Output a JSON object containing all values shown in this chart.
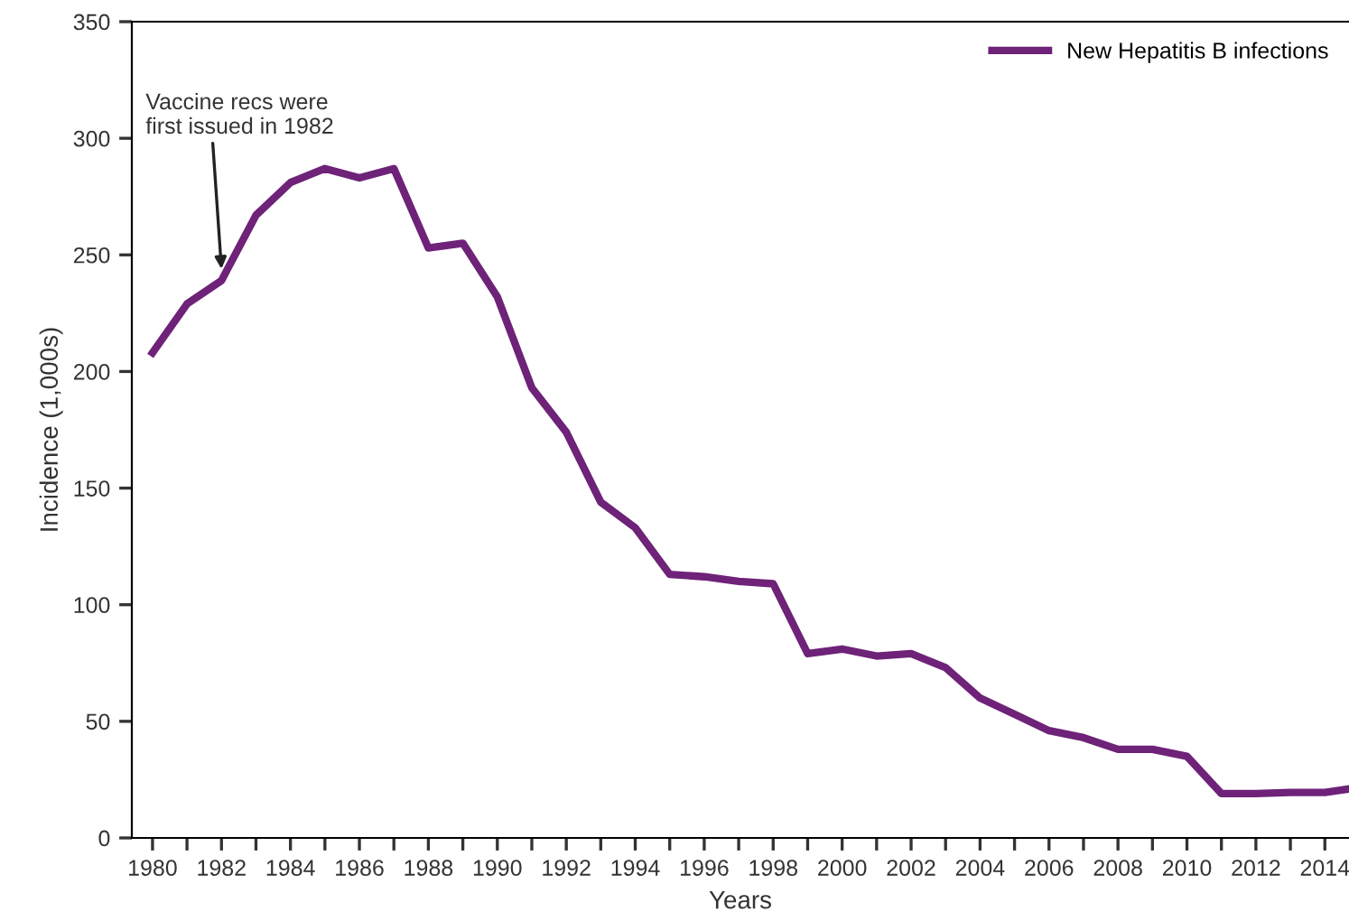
{
  "chart_data": {
    "type": "line",
    "xlabel": "Years",
    "ylabel": "Incidence (1,000s)",
    "x": [
      1980,
      1981,
      1982,
      1983,
      1984,
      1985,
      1986,
      1987,
      1988,
      1989,
      1990,
      1991,
      1992,
      1993,
      1994,
      1995,
      1996,
      1997,
      1998,
      1999,
      2000,
      2001,
      2002,
      2003,
      2004,
      2005,
      2006,
      2007,
      2008,
      2009,
      2010,
      2011,
      2012,
      2013,
      2014,
      2014.7
    ],
    "series": [
      {
        "name": "New Hepatitis B infections",
        "color": "#6e2278",
        "values": [
          208,
          229,
          239,
          267,
          281,
          287,
          283,
          287,
          253,
          255,
          232,
          193,
          174,
          144,
          133,
          113,
          112,
          110,
          109,
          79,
          81,
          78,
          79,
          73,
          60,
          53,
          46,
          43,
          38,
          38,
          35,
          19,
          19,
          19.5,
          19.5,
          21
        ]
      }
    ],
    "xlim": [
      1979.4,
      2014.7
    ],
    "ylim": [
      0,
      350
    ],
    "xticks": [
      1980,
      {
        "value": 1981,
        "label": null
      },
      1982,
      {
        "value": 1983,
        "label": null
      },
      1984,
      {
        "value": 1985,
        "label": null
      },
      1986,
      {
        "value": 1987,
        "label": null
      },
      1988,
      {
        "value": 1989,
        "label": null
      },
      1990,
      {
        "value": 1991,
        "label": null
      },
      1992,
      {
        "value": 1993,
        "label": null
      },
      1994,
      {
        "value": 1995,
        "label": null
      },
      1996,
      {
        "value": 1997,
        "label": null
      },
      1998,
      {
        "value": 1999,
        "label": null
      },
      2000,
      {
        "value": 2001,
        "label": null
      },
      2002,
      {
        "value": 2003,
        "label": null
      },
      2004,
      {
        "value": 2005,
        "label": null
      },
      2006,
      {
        "value": 2007,
        "label": null
      },
      2008,
      {
        "value": 2009,
        "label": null
      },
      2010,
      {
        "value": 2011,
        "label": null
      },
      2012,
      {
        "value": 2013,
        "label": null
      },
      2014
    ],
    "yticks": [
      0,
      50,
      100,
      150,
      200,
      250,
      300,
      350
    ],
    "annotations": [
      {
        "text": "Vaccine recs were\nfirst issued in 1982",
        "x": 1982,
        "y": 239
      }
    ],
    "grid": false,
    "legend": "top right",
    "marker": "none",
    "line_style": "solid"
  }
}
